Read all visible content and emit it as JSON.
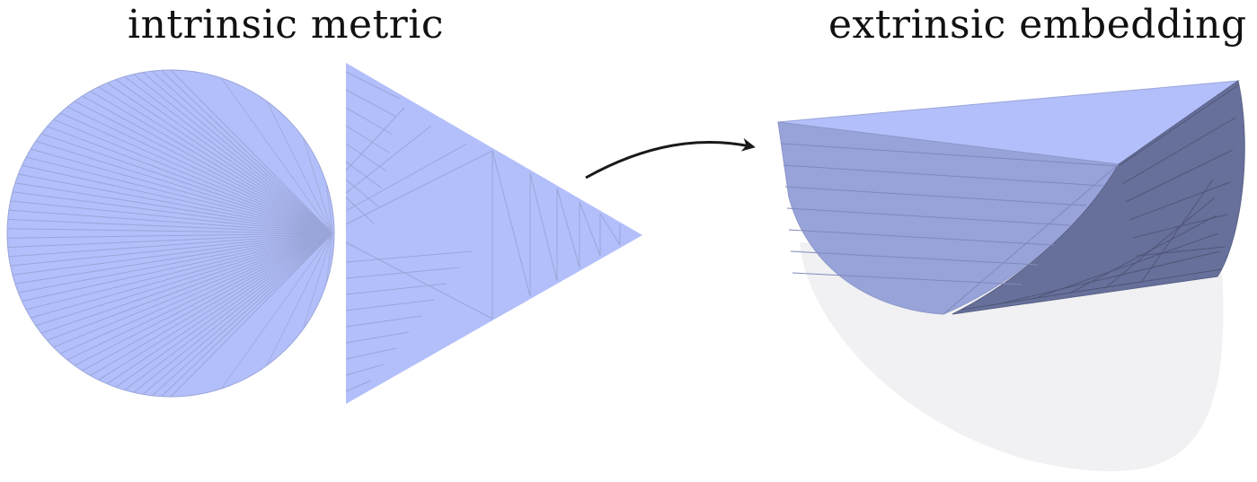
{
  "labels": {
    "left": "intrinsic metric",
    "right": "extrinsic embedding"
  },
  "colors": {
    "face": "#b3bffa",
    "edge": "#9aa5d8",
    "dark_face": "#67709a",
    "shadow": "#f1f1f3",
    "arrow": "#1a1a1a"
  }
}
